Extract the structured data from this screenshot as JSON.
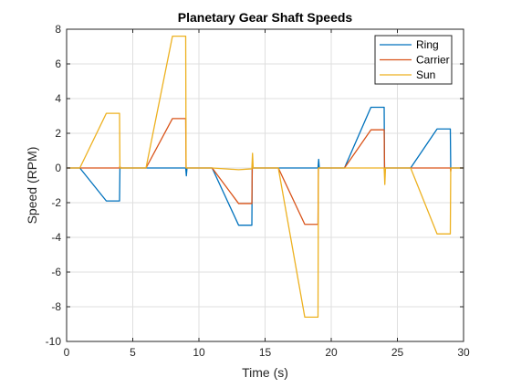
{
  "chart_data": {
    "type": "line",
    "title": "Planetary Gear Shaft Speeds",
    "xlabel": "Time (s)",
    "ylabel": "Speed (RPM)",
    "xlim": [
      0,
      30
    ],
    "ylim": [
      -10,
      8
    ],
    "xticks": [
      0,
      5,
      10,
      15,
      20,
      25,
      30
    ],
    "yticks": [
      -10,
      -8,
      -6,
      -4,
      -2,
      0,
      2,
      4,
      6,
      8
    ],
    "grid": true,
    "legend_position": "top-right",
    "series": [
      {
        "name": "Ring",
        "color": "#0072BD",
        "points": [
          [
            0,
            0
          ],
          [
            1,
            0
          ],
          [
            3,
            -1.9
          ],
          [
            4,
            -1.9
          ],
          [
            4.03,
            0
          ],
          [
            6,
            0
          ],
          [
            9,
            0
          ],
          [
            9.05,
            -0.45
          ],
          [
            9.1,
            0
          ],
          [
            11,
            0
          ],
          [
            13,
            -3.3
          ],
          [
            14,
            -3.3
          ],
          [
            14.03,
            0
          ],
          [
            16,
            0
          ],
          [
            19,
            0
          ],
          [
            19.05,
            0.5
          ],
          [
            19.1,
            0
          ],
          [
            21,
            0
          ],
          [
            23,
            3.5
          ],
          [
            24,
            3.5
          ],
          [
            24.03,
            0
          ],
          [
            26,
            0
          ],
          [
            28,
            2.25
          ],
          [
            29,
            2.25
          ],
          [
            29.03,
            0
          ],
          [
            30,
            0
          ]
        ]
      },
      {
        "name": "Carrier",
        "color": "#D95319",
        "points": [
          [
            0,
            0
          ],
          [
            1,
            0
          ],
          [
            4,
            0
          ],
          [
            4.03,
            0.1
          ],
          [
            4.06,
            0
          ],
          [
            6,
            0
          ],
          [
            8,
            2.85
          ],
          [
            9,
            2.85
          ],
          [
            9.03,
            0
          ],
          [
            11,
            0
          ],
          [
            13,
            -2.05
          ],
          [
            14,
            -2.05
          ],
          [
            14.03,
            0
          ],
          [
            16,
            0
          ],
          [
            18,
            -3.25
          ],
          [
            19,
            -3.25
          ],
          [
            19.03,
            0
          ],
          [
            21,
            0
          ],
          [
            23,
            2.2
          ],
          [
            24,
            2.2
          ],
          [
            24.03,
            0
          ],
          [
            26,
            0
          ],
          [
            29,
            0
          ],
          [
            29.03,
            -0.2
          ],
          [
            29.06,
            0
          ],
          [
            30,
            0
          ]
        ]
      },
      {
        "name": "Sun",
        "color": "#EDB120",
        "points": [
          [
            0,
            0
          ],
          [
            1,
            0
          ],
          [
            3,
            3.15
          ],
          [
            4,
            3.15
          ],
          [
            4.03,
            0
          ],
          [
            6,
            0
          ],
          [
            8,
            7.6
          ],
          [
            9,
            7.6
          ],
          [
            9.03,
            0
          ],
          [
            11,
            0
          ],
          [
            13,
            -0.1
          ],
          [
            14,
            -0.05
          ],
          [
            14.05,
            0.85
          ],
          [
            14.1,
            0
          ],
          [
            16,
            0
          ],
          [
            18,
            -8.6
          ],
          [
            19,
            -8.6
          ],
          [
            19.03,
            0
          ],
          [
            21,
            0
          ],
          [
            24,
            0
          ],
          [
            24.05,
            -0.95
          ],
          [
            24.1,
            0
          ],
          [
            26,
            0
          ],
          [
            28,
            -3.8
          ],
          [
            29,
            -3.8
          ],
          [
            29.03,
            0
          ],
          [
            30,
            0
          ]
        ]
      }
    ]
  }
}
